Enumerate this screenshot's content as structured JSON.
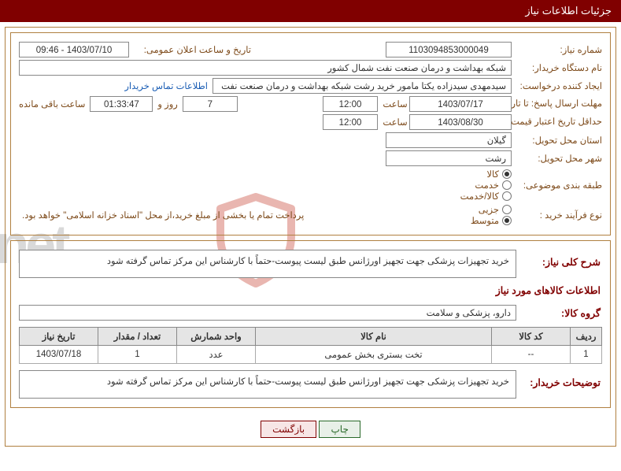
{
  "header": {
    "title": "جزئیات اطلاعات نیاز"
  },
  "need": {
    "number_label": "شماره نیاز:",
    "number": "1103094853000049",
    "announce_label": "تاریخ و ساعت اعلان عمومی:",
    "announce_value": "1403/07/10 - 09:46",
    "buyer_label": "نام دستگاه خریدار:",
    "buyer": "شبکه بهداشت و درمان صنعت نفت شمال کشور",
    "creator_label": "ایجاد کننده درخواست:",
    "creator": "سیدمهدی سیدزاده یکتا مامور خرید رشت شبکه بهداشت و درمان صنعت نفت شـ",
    "contact_link": "اطلاعات تماس خریدار",
    "deadline_label": "مهلت ارسال پاسخ: تا تاریخ:",
    "deadline_date": "1403/07/17",
    "time_label": "ساعت",
    "deadline_time": "12:00",
    "days_remain": "7",
    "days_label": "روز و",
    "hours_remain": "01:33:47",
    "remain_label": "ساعت باقی مانده",
    "validity_label": "حداقل تاریخ اعتبار قیمت: تا تاریخ:",
    "validity_date": "1403/08/30",
    "validity_time": "12:00",
    "province_label": "استان محل تحویل:",
    "province": "گیلان",
    "city_label": "شهر محل تحویل:",
    "city": "رشت",
    "subject_class_label": "طبقه بندی موضوعی:",
    "radios_subject": [
      {
        "label": "کالا",
        "selected": true
      },
      {
        "label": "خدمت",
        "selected": false
      },
      {
        "label": "کالا/خدمت",
        "selected": false
      }
    ],
    "process_label": "نوع فرآیند خرید :",
    "radios_process": [
      {
        "label": "جزیی",
        "selected": false
      },
      {
        "label": "متوسط",
        "selected": true
      }
    ],
    "process_note": "پرداخت تمام یا بخشی از مبلغ خرید،از محل \"اسناد خزانه اسلامی\" خواهد بود."
  },
  "desc": {
    "title_label": "شرح کلی نیاز:",
    "text": "خرید تجهیزات پزشکی جهت تجهیز اورژانس طبق لیست پیوست-حتماً با کارشناس این مرکز تماس گرفته شود",
    "goods_header": "اطلاعات کالاهای مورد نیاز",
    "group_label": "گروه کالا:",
    "group": "دارو، پزشکی و سلامت"
  },
  "table": {
    "headers": [
      "ردیف",
      "کد کالا",
      "نام کالا",
      "واحد شمارش",
      "تعداد / مقدار",
      "تاریخ نیاز"
    ],
    "widths": [
      "40px",
      "100px",
      "auto",
      "100px",
      "100px",
      "100px"
    ],
    "rows": [
      [
        "1",
        "--",
        "تخت بستری بخش عمومی",
        "عدد",
        "1",
        "1403/07/18"
      ]
    ]
  },
  "buyer_notes": {
    "label": "توضیحات خریدار:",
    "text": "خرید تجهیزات پزشکی جهت تجهیز اورژانس طبق لیست پیوست-حتماً با کارشناس این مرکز تماس گرفته شود"
  },
  "buttons": {
    "print": "چاپ",
    "back": "بازگشت"
  }
}
